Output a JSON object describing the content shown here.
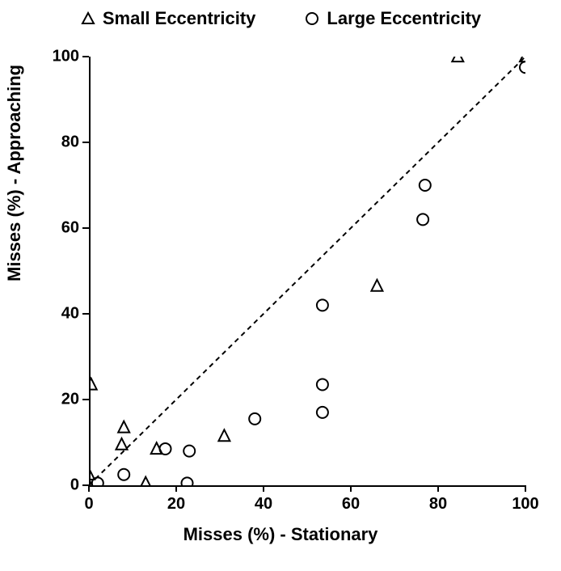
{
  "chart": {
    "type": "scatter",
    "background_color": "#ffffff",
    "axis_color": "#000000",
    "tick_fontsize": 20,
    "tick_fontweight": "bold",
    "label_fontsize": 22,
    "label_fontweight": "bold",
    "legend_fontsize": 22,
    "legend_fontweight": "bold",
    "marker_stroke": "#000000",
    "marker_fill": "none",
    "marker_stroke_width": 2,
    "triangle_size": 14,
    "circle_size": 14,
    "xlim": [
      0,
      100
    ],
    "ylim": [
      0,
      100
    ],
    "xtick_step": 20,
    "ytick_step": 20,
    "xticks": [
      0,
      20,
      40,
      60,
      80,
      100
    ],
    "yticks": [
      0,
      20,
      40,
      60,
      80,
      100
    ],
    "xlabel": "Misses (%) - Stationary",
    "ylabel": "Misses (%) - Approaching",
    "legend": [
      {
        "marker": "triangle",
        "label": "Small Eccentricity"
      },
      {
        "marker": "circle",
        "label": "Large Eccentricity"
      }
    ],
    "reference_line": {
      "x0": 0,
      "y0": 0,
      "x1": 100,
      "y1": 100,
      "style": "dashed",
      "color": "#000000",
      "width": 2,
      "dash": "6,5"
    },
    "series": {
      "small_eccentricity": {
        "marker": "triangle",
        "points": [
          {
            "x": 0,
            "y": 0
          },
          {
            "x": 0,
            "y": 2.5
          },
          {
            "x": 0.5,
            "y": 23.5
          },
          {
            "x": 7.5,
            "y": 9.5
          },
          {
            "x": 8,
            "y": 13.5
          },
          {
            "x": 13,
            "y": 0.5
          },
          {
            "x": 15.5,
            "y": 8.5
          },
          {
            "x": 31,
            "y": 11.5
          },
          {
            "x": 66,
            "y": 46.5
          },
          {
            "x": 84.5,
            "y": 100
          },
          {
            "x": 100,
            "y": 100
          }
        ]
      },
      "large_eccentricity": {
        "marker": "circle",
        "points": [
          {
            "x": 2,
            "y": 0.5
          },
          {
            "x": 8,
            "y": 2.5
          },
          {
            "x": 17.5,
            "y": 8.5
          },
          {
            "x": 22.5,
            "y": 0.5
          },
          {
            "x": 23,
            "y": 8
          },
          {
            "x": 38,
            "y": 15.5
          },
          {
            "x": 53.5,
            "y": 17
          },
          {
            "x": 53.5,
            "y": 23.5
          },
          {
            "x": 53.5,
            "y": 42
          },
          {
            "x": 76.5,
            "y": 62
          },
          {
            "x": 77,
            "y": 70
          },
          {
            "x": 100,
            "y": 97.5
          }
        ]
      }
    }
  }
}
